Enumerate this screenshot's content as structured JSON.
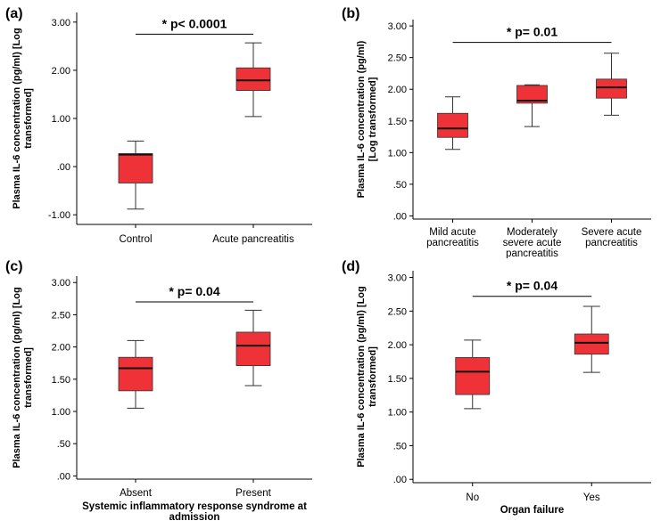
{
  "chart_data": [
    {
      "id": "a",
      "type": "box",
      "panel_label": "(a)",
      "ylabel_lines": [
        "Plasma IL-6 concentration (pg/ml) [Log",
        "transformed]"
      ],
      "xlabel_lines": [],
      "ylim": [
        -1.2,
        3.2
      ],
      "yticks": [
        -1,
        0,
        1,
        2,
        3
      ],
      "ytick_labels": [
        "-1.00",
        ".00",
        "1.00",
        "2.00",
        "3.00"
      ],
      "categories": [
        [
          "Control"
        ],
        [
          "Acute pancreatitis"
        ]
      ],
      "boxes": [
        {
          "min": -0.88,
          "q1": -0.34,
          "median": 0.25,
          "q3": 0.27,
          "max": 0.53
        },
        {
          "min": 1.04,
          "q1": 1.58,
          "median": 1.79,
          "q3": 2.05,
          "max": 2.57
        }
      ],
      "significance": {
        "text": "p< 0.0001",
        "from": 0,
        "to": 1,
        "y": 2.75
      }
    },
    {
      "id": "b",
      "type": "box",
      "panel_label": "(b)",
      "ylabel_lines": [
        "Plasma IL-6 concentration (pg/ml)",
        "[Log transformed]"
      ],
      "xlabel_lines": [],
      "ylim": [
        -0.05,
        3.1
      ],
      "yticks": [
        0,
        0.5,
        1,
        1.5,
        2,
        2.5,
        3
      ],
      "ytick_labels": [
        ".00",
        ".50",
        "1.00",
        "1.50",
        "2.00",
        "2.50",
        "3.00"
      ],
      "categories": [
        [
          "Mild acute",
          "pancreatitis"
        ],
        [
          "Moderately",
          "severe acute",
          "pancreatitis"
        ],
        [
          "Severe acute",
          "pancreatitis"
        ]
      ],
      "boxes": [
        {
          "min": 1.05,
          "q1": 1.24,
          "median": 1.38,
          "q3": 1.62,
          "max": 1.88
        },
        {
          "min": 1.41,
          "q1": 1.78,
          "median": 1.82,
          "q3": 2.06,
          "max": 2.07
        },
        {
          "min": 1.59,
          "q1": 1.86,
          "median": 2.03,
          "q3": 2.16,
          "max": 2.57
        }
      ],
      "significance": {
        "text": "p= 0.01",
        "from": 0,
        "to": 2,
        "y": 2.74
      }
    },
    {
      "id": "c",
      "type": "box",
      "panel_label": "(c)",
      "ylabel_lines": [
        "Plasma IL-6 concentration (pg/ml) [Log",
        "transformed]"
      ],
      "xlabel_lines": [
        "Systemic inflammatory response syndrome at",
        "admission"
      ],
      "ylim": [
        -0.05,
        3.1
      ],
      "yticks": [
        0,
        0.5,
        1,
        1.5,
        2,
        2.5,
        3
      ],
      "ytick_labels": [
        ".00",
        ".50",
        "1.00",
        "1.50",
        "2.00",
        "2.50",
        "3.00"
      ],
      "categories": [
        [
          "Absent"
        ],
        [
          "Present"
        ]
      ],
      "boxes": [
        {
          "min": 1.05,
          "q1": 1.32,
          "median": 1.67,
          "q3": 1.84,
          "max": 2.1
        },
        {
          "min": 1.4,
          "q1": 1.71,
          "median": 2.02,
          "q3": 2.23,
          "max": 2.57
        }
      ],
      "significance": {
        "text": "p= 0.04",
        "from": 0,
        "to": 1,
        "y": 2.7
      }
    },
    {
      "id": "d",
      "type": "box",
      "panel_label": "(d)",
      "ylabel_lines": [
        "Plasma IL-6 concentration (pg/ml) [Log",
        "transformed]"
      ],
      "xlabel_lines": [
        "Organ failure"
      ],
      "ylim": [
        -0.05,
        3.1
      ],
      "yticks": [
        0,
        0.5,
        1,
        1.5,
        2,
        2.5,
        3
      ],
      "ytick_labels": [
        ".00",
        ".50",
        "1.00",
        "1.50",
        "2.00",
        "2.50",
        "3.00"
      ],
      "categories": [
        [
          "No"
        ],
        [
          "Yes"
        ]
      ],
      "boxes": [
        {
          "min": 1.05,
          "q1": 1.26,
          "median": 1.6,
          "q3": 1.81,
          "max": 2.07
        },
        {
          "min": 1.59,
          "q1": 1.86,
          "median": 2.03,
          "q3": 2.16,
          "max": 2.57
        }
      ],
      "significance": {
        "text": "p= 0.04",
        "from": 0,
        "to": 1,
        "y": 2.72
      }
    }
  ],
  "style": {
    "box_fill": "#ee3237",
    "box_stroke": "#333333",
    "axis_color": "#000000",
    "sig_marker": "*"
  }
}
